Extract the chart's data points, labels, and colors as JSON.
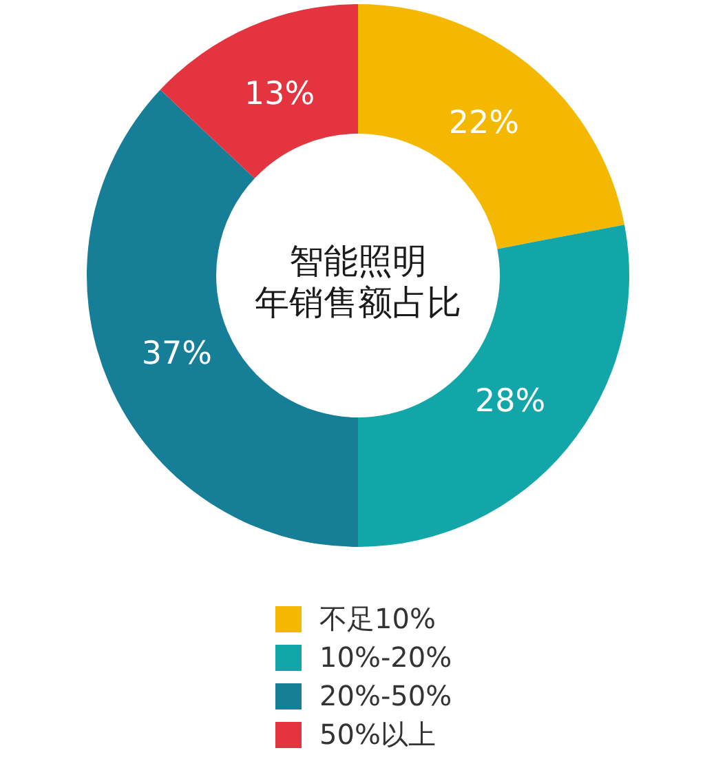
{
  "chart_data": {
    "type": "donut",
    "title": "智能照明",
    "subtitle": "年销售额占比",
    "categories": [
      "不足10%",
      "10%-20%",
      "20%-50%",
      "50%以上"
    ],
    "values": [
      22,
      28,
      37,
      13
    ],
    "value_labels": [
      "22%",
      "28%",
      "37%",
      "13%"
    ],
    "colors": [
      "#f5b800",
      "#13a6a8",
      "#177e98",
      "#e3343f"
    ],
    "legend": "bottom"
  }
}
